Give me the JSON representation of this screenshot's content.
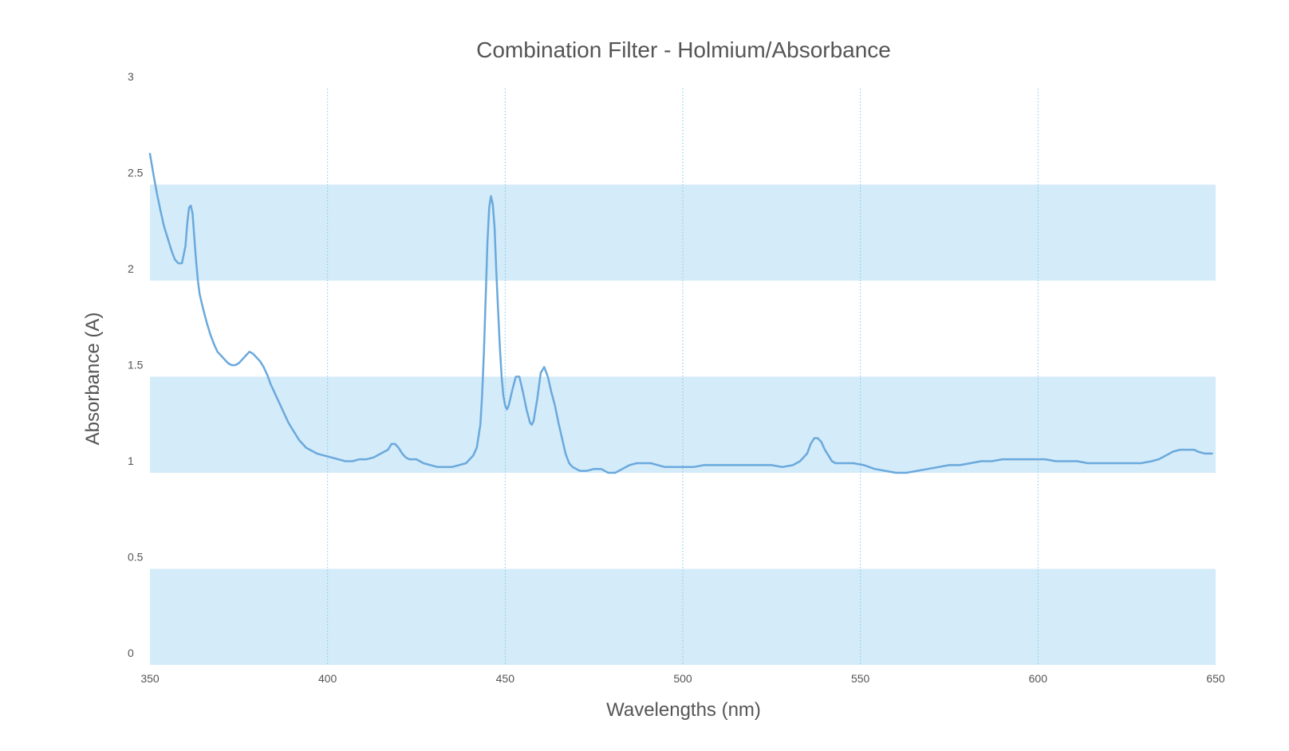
{
  "chart_data": {
    "type": "line",
    "title": "Combination Filter - Holmium/Absorbance",
    "xlabel": "Wavelengths (nm)",
    "ylabel": "Absorbance (A)",
    "xlim": [
      350,
      650
    ],
    "ylim": [
      0,
      3
    ],
    "x_ticks": [
      "350",
      "400",
      "450",
      "500",
      "550",
      "600",
      "650"
    ],
    "y_ticks": [
      "0",
      "0.5",
      "1",
      "1.5",
      "2",
      "2.5",
      "3"
    ],
    "grid": "vertical dotted lines at x ticks",
    "bands": [
      [
        0,
        0.5
      ],
      [
        1,
        1.5
      ],
      [
        2,
        2.5
      ]
    ],
    "colors": {
      "line": "#6aa9dc",
      "band": "#d4ebfa",
      "grid": "#7fc8e6",
      "text": "#555555"
    },
    "series": [
      {
        "points": [
          [
            350,
            2.66
          ],
          [
            351,
            2.55
          ],
          [
            352,
            2.45
          ],
          [
            353,
            2.36
          ],
          [
            354,
            2.28
          ],
          [
            355,
            2.22
          ],
          [
            356,
            2.16
          ],
          [
            357,
            2.11
          ],
          [
            358,
            2.09
          ],
          [
            359,
            2.09
          ],
          [
            360,
            2.18
          ],
          [
            360.5,
            2.3
          ],
          [
            361,
            2.38
          ],
          [
            361.5,
            2.39
          ],
          [
            362,
            2.35
          ],
          [
            362.5,
            2.22
          ],
          [
            363,
            2.1
          ],
          [
            363.5,
            2.0
          ],
          [
            364,
            1.93
          ],
          [
            365,
            1.85
          ],
          [
            366,
            1.78
          ],
          [
            367,
            1.72
          ],
          [
            368,
            1.67
          ],
          [
            369,
            1.63
          ],
          [
            370,
            1.61
          ],
          [
            371,
            1.59
          ],
          [
            372,
            1.57
          ],
          [
            373,
            1.56
          ],
          [
            374,
            1.56
          ],
          [
            375,
            1.57
          ],
          [
            376,
            1.59
          ],
          [
            377,
            1.61
          ],
          [
            378,
            1.63
          ],
          [
            379,
            1.62
          ],
          [
            380,
            1.6
          ],
          [
            381,
            1.58
          ],
          [
            382,
            1.55
          ],
          [
            383,
            1.51
          ],
          [
            384,
            1.46
          ],
          [
            385,
            1.42
          ],
          [
            386,
            1.38
          ],
          [
            387,
            1.34
          ],
          [
            388,
            1.3
          ],
          [
            389,
            1.26
          ],
          [
            390,
            1.23
          ],
          [
            391,
            1.2
          ],
          [
            392,
            1.17
          ],
          [
            393,
            1.15
          ],
          [
            394,
            1.13
          ],
          [
            395,
            1.12
          ],
          [
            397,
            1.1
          ],
          [
            399,
            1.09
          ],
          [
            401,
            1.08
          ],
          [
            403,
            1.07
          ],
          [
            405,
            1.06
          ],
          [
            407,
            1.06
          ],
          [
            409,
            1.07
          ],
          [
            411,
            1.07
          ],
          [
            413,
            1.08
          ],
          [
            415,
            1.1
          ],
          [
            417,
            1.12
          ],
          [
            418,
            1.15
          ],
          [
            419,
            1.15
          ],
          [
            420,
            1.13
          ],
          [
            421,
            1.1
          ],
          [
            422,
            1.08
          ],
          [
            423,
            1.07
          ],
          [
            425,
            1.07
          ],
          [
            427,
            1.05
          ],
          [
            429,
            1.04
          ],
          [
            431,
            1.03
          ],
          [
            433,
            1.03
          ],
          [
            435,
            1.03
          ],
          [
            437,
            1.04
          ],
          [
            439,
            1.05
          ],
          [
            440,
            1.07
          ],
          [
            441,
            1.09
          ],
          [
            442,
            1.13
          ],
          [
            443,
            1.25
          ],
          [
            443.5,
            1.4
          ],
          [
            444,
            1.62
          ],
          [
            444.5,
            1.9
          ],
          [
            445,
            2.2
          ],
          [
            445.5,
            2.38
          ],
          [
            446,
            2.44
          ],
          [
            446.5,
            2.4
          ],
          [
            447,
            2.28
          ],
          [
            447.5,
            2.05
          ],
          [
            448,
            1.85
          ],
          [
            448.5,
            1.65
          ],
          [
            449,
            1.5
          ],
          [
            449.5,
            1.4
          ],
          [
            450,
            1.35
          ],
          [
            450.5,
            1.33
          ],
          [
            451,
            1.35
          ],
          [
            452,
            1.43
          ],
          [
            453,
            1.5
          ],
          [
            454,
            1.5
          ],
          [
            455,
            1.42
          ],
          [
            456,
            1.33
          ],
          [
            457,
            1.26
          ],
          [
            457.5,
            1.25
          ],
          [
            458,
            1.27
          ],
          [
            459,
            1.38
          ],
          [
            460,
            1.52
          ],
          [
            461,
            1.55
          ],
          [
            462,
            1.5
          ],
          [
            463,
            1.42
          ],
          [
            464,
            1.35
          ],
          [
            465,
            1.26
          ],
          [
            466,
            1.18
          ],
          [
            467,
            1.1
          ],
          [
            468,
            1.05
          ],
          [
            469,
            1.03
          ],
          [
            470,
            1.02
          ],
          [
            471,
            1.01
          ],
          [
            473,
            1.01
          ],
          [
            475,
            1.02
          ],
          [
            477,
            1.02
          ],
          [
            479,
            1.0
          ],
          [
            481,
            1.0
          ],
          [
            483,
            1.02
          ],
          [
            485,
            1.04
          ],
          [
            487,
            1.05
          ],
          [
            489,
            1.05
          ],
          [
            491,
            1.05
          ],
          [
            493,
            1.04
          ],
          [
            495,
            1.03
          ],
          [
            497,
            1.03
          ],
          [
            500,
            1.03
          ],
          [
            503,
            1.03
          ],
          [
            506,
            1.04
          ],
          [
            510,
            1.04
          ],
          [
            515,
            1.04
          ],
          [
            520,
            1.04
          ],
          [
            525,
            1.04
          ],
          [
            528,
            1.03
          ],
          [
            531,
            1.04
          ],
          [
            533,
            1.06
          ],
          [
            535,
            1.1
          ],
          [
            536,
            1.15
          ],
          [
            537,
            1.18
          ],
          [
            538,
            1.18
          ],
          [
            539,
            1.16
          ],
          [
            540,
            1.12
          ],
          [
            541,
            1.09
          ],
          [
            542,
            1.06
          ],
          [
            543,
            1.05
          ],
          [
            545,
            1.05
          ],
          [
            548,
            1.05
          ],
          [
            551,
            1.04
          ],
          [
            554,
            1.02
          ],
          [
            557,
            1.01
          ],
          [
            560,
            1.0
          ],
          [
            563,
            1.0
          ],
          [
            566,
            1.01
          ],
          [
            569,
            1.02
          ],
          [
            572,
            1.03
          ],
          [
            575,
            1.04
          ],
          [
            578,
            1.04
          ],
          [
            581,
            1.05
          ],
          [
            584,
            1.06
          ],
          [
            587,
            1.06
          ],
          [
            590,
            1.07
          ],
          [
            593,
            1.07
          ],
          [
            596,
            1.07
          ],
          [
            599,
            1.07
          ],
          [
            602,
            1.07
          ],
          [
            605,
            1.06
          ],
          [
            608,
            1.06
          ],
          [
            611,
            1.06
          ],
          [
            614,
            1.05
          ],
          [
            617,
            1.05
          ],
          [
            620,
            1.05
          ],
          [
            623,
            1.05
          ],
          [
            626,
            1.05
          ],
          [
            629,
            1.05
          ],
          [
            632,
            1.06
          ],
          [
            634,
            1.07
          ],
          [
            636,
            1.09
          ],
          [
            638,
            1.11
          ],
          [
            640,
            1.12
          ],
          [
            642,
            1.12
          ],
          [
            644,
            1.12
          ],
          [
            645,
            1.11
          ],
          [
            647,
            1.1
          ],
          [
            649,
            1.1
          ]
        ]
      }
    ]
  }
}
